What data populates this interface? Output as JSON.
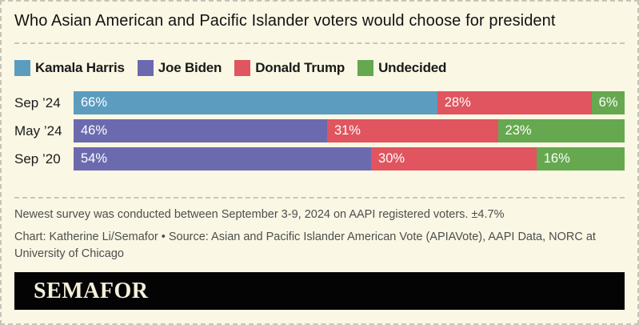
{
  "title": "Who Asian American and Pacific Islander voters would choose for president",
  "colors": {
    "background": "#faf7e4",
    "border": "#c7c4b8",
    "harris_blue": "#5b9cbf",
    "biden_purple": "#6c6aae",
    "trump_red": "#e0555f",
    "undecided_green": "#66a850",
    "logo_bar_bg": "#040404",
    "logo_text": "#f4f0da"
  },
  "legend": [
    {
      "label": "Kamala Harris",
      "color": "#5b9cbf"
    },
    {
      "label": "Joe Biden",
      "color": "#6c6aae"
    },
    {
      "label": "Donald Trump",
      "color": "#e0555f"
    },
    {
      "label": "Undecided",
      "color": "#66a850"
    }
  ],
  "chart_data": {
    "type": "bar",
    "orientation": "horizontal",
    "stacked": true,
    "unit": "%",
    "xlim": [
      0,
      100
    ],
    "grid": false,
    "legend_position": "top",
    "categories": [
      "Sep ’24",
      "May ’24",
      "Sep ’20"
    ],
    "series": [
      {
        "name": "Kamala Harris",
        "color": "#5b9cbf",
        "values": [
          66,
          null,
          null
        ]
      },
      {
        "name": "Joe Biden",
        "color": "#6c6aae",
        "values": [
          null,
          46,
          54
        ]
      },
      {
        "name": "Donald Trump",
        "color": "#e0555f",
        "values": [
          28,
          31,
          30
        ]
      },
      {
        "name": "Undecided",
        "color": "#66a850",
        "values": [
          6,
          23,
          16
        ]
      }
    ],
    "rows": [
      {
        "label": "Sep ’24",
        "segments": [
          {
            "name": "Kamala Harris",
            "value": 66,
            "display": "66%",
            "color": "#5b9cbf"
          },
          {
            "name": "Donald Trump",
            "value": 28,
            "display": "28%",
            "color": "#e0555f"
          },
          {
            "name": "Undecided",
            "value": 6,
            "display": "6%",
            "color": "#66a850"
          }
        ]
      },
      {
        "label": "May ’24",
        "segments": [
          {
            "name": "Joe Biden",
            "value": 46,
            "display": "46%",
            "color": "#6c6aae"
          },
          {
            "name": "Donald Trump",
            "value": 31,
            "display": "31%",
            "color": "#e0555f"
          },
          {
            "name": "Undecided",
            "value": 23,
            "display": "23%",
            "color": "#66a850"
          }
        ]
      },
      {
        "label": "Sep ’20",
        "segments": [
          {
            "name": "Joe Biden",
            "value": 54,
            "display": "54%",
            "color": "#6c6aae"
          },
          {
            "name": "Donald Trump",
            "value": 30,
            "display": "30%",
            "color": "#e0555f"
          },
          {
            "name": "Undecided",
            "value": 16,
            "display": "16%",
            "color": "#66a850"
          }
        ]
      }
    ]
  },
  "footnotes": {
    "methodology": "Newest survey was conducted between September 3-9, 2024 on AAPI registered voters. ±4.7%",
    "source": "Chart: Katherine Li/Semafor • Source: Asian and Pacific Islander American Vote (APIAVote), AAPI Data, NORC at University of Chicago"
  },
  "logo": {
    "text": "SEMAFOR"
  }
}
